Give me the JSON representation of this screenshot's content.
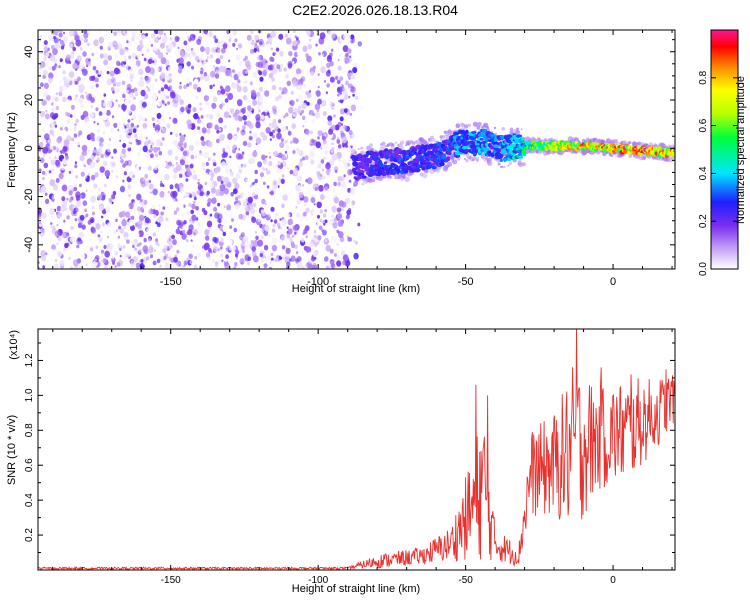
{
  "title": "C2E2.2026.026.18.13.R04",
  "colors": {
    "axis": "#000000",
    "snr_line": "#e8302c",
    "scatter_low": "#d7c2f5",
    "scatter_mid": "#7a2ff0"
  },
  "chart_data": [
    {
      "type": "heatmap",
      "panel": "spectrogram",
      "xlabel": "Height of straight line (km)",
      "ylabel": "Frequency (Hz)",
      "xlim": [
        -195,
        21
      ],
      "ylim": [
        -50,
        49
      ],
      "x_ticks": [
        -150,
        -100,
        -50,
        0
      ],
      "x_tick_labels": [
        "-150",
        "-100",
        "-50",
        "0"
      ],
      "y_ticks": [
        -40,
        -20,
        0,
        20,
        40
      ],
      "y_tick_labels": [
        "-40",
        "-20",
        "0",
        "20",
        "40"
      ],
      "noise_region": {
        "x_range": [
          -195,
          -88
        ],
        "freq_range": [
          -50,
          49
        ],
        "amplitude_range": [
          0.0,
          0.15
        ]
      },
      "signal_trace": [
        {
          "x": -88,
          "freq": -8,
          "amp": 0.25
        },
        {
          "x": -80,
          "freq": -6,
          "amp": 0.3
        },
        {
          "x": -70,
          "freq": -5,
          "amp": 0.32
        },
        {
          "x": -60,
          "freq": -3,
          "amp": 0.3
        },
        {
          "x": -52,
          "freq": 2,
          "amp": 0.38
        },
        {
          "x": -45,
          "freq": 3,
          "amp": 0.4
        },
        {
          "x": -38,
          "freq": 0,
          "amp": 0.35
        },
        {
          "x": -30,
          "freq": 1,
          "amp": 0.55
        },
        {
          "x": -20,
          "freq": 1,
          "amp": 0.75
        },
        {
          "x": -10,
          "freq": 1,
          "amp": 0.9
        },
        {
          "x": 0,
          "freq": 0,
          "amp": 0.95
        },
        {
          "x": 10,
          "freq": -1,
          "amp": 1.0
        },
        {
          "x": 21,
          "freq": -2,
          "amp": 0.9
        }
      ],
      "colorbar": {
        "label": "Normalized spectral amplitude",
        "range": [
          0,
          1
        ],
        "ticks": [
          0.0,
          0.2,
          0.4,
          0.6,
          0.8
        ],
        "tick_labels": [
          "0.0",
          "0.2",
          "0.4",
          "0.6",
          "0.8"
        ]
      }
    },
    {
      "type": "line",
      "panel": "snr",
      "xlabel": "Height of straight line (km)",
      "ylabel": "SNR (10 * v/v)",
      "y_scale_label": "(x10⁴)",
      "xlim": [
        -195,
        21
      ],
      "ylim": [
        0,
        1.38
      ],
      "x_ticks": [
        -150,
        -100,
        -50,
        0
      ],
      "x_tick_labels": [
        "-150",
        "-100",
        "-50",
        "0"
      ],
      "y_ticks": [
        0.2,
        0.4,
        0.6,
        0.8,
        1.0,
        1.2
      ],
      "y_tick_labels": [
        "0.2",
        "0.4",
        "0.6",
        "0.8",
        "1.0",
        "1.2"
      ],
      "envelope": [
        {
          "x": -195,
          "mean": 0.01,
          "spread": 0.005
        },
        {
          "x": -90,
          "mean": 0.01,
          "spread": 0.005
        },
        {
          "x": -80,
          "mean": 0.05,
          "spread": 0.04
        },
        {
          "x": -65,
          "mean": 0.08,
          "spread": 0.05
        },
        {
          "x": -55,
          "mean": 0.15,
          "spread": 0.1
        },
        {
          "x": -48,
          "mean": 0.35,
          "spread": 0.3
        },
        {
          "x": -44,
          "mean": 0.5,
          "spread": 0.45
        },
        {
          "x": -40,
          "mean": 0.15,
          "spread": 0.1
        },
        {
          "x": -32,
          "mean": 0.08,
          "spread": 0.06
        },
        {
          "x": -28,
          "mean": 0.55,
          "spread": 0.25
        },
        {
          "x": -20,
          "mean": 0.6,
          "spread": 0.3
        },
        {
          "x": -13,
          "mean": 0.7,
          "spread": 0.5
        },
        {
          "x": -5,
          "mean": 0.75,
          "spread": 0.3
        },
        {
          "x": 5,
          "mean": 0.8,
          "spread": 0.3
        },
        {
          "x": 15,
          "mean": 0.9,
          "spread": 0.2
        },
        {
          "x": 21,
          "mean": 1.0,
          "spread": 0.15
        }
      ],
      "peaks": [
        {
          "x": -46.5,
          "y": 1.06
        },
        {
          "x": -42.5,
          "y": 1.0
        },
        {
          "x": -12.5,
          "y": 1.38
        },
        {
          "x": -4,
          "y": 1.16
        },
        {
          "x": 6,
          "y": 1.12
        },
        {
          "x": 18,
          "y": 1.15
        }
      ]
    }
  ]
}
